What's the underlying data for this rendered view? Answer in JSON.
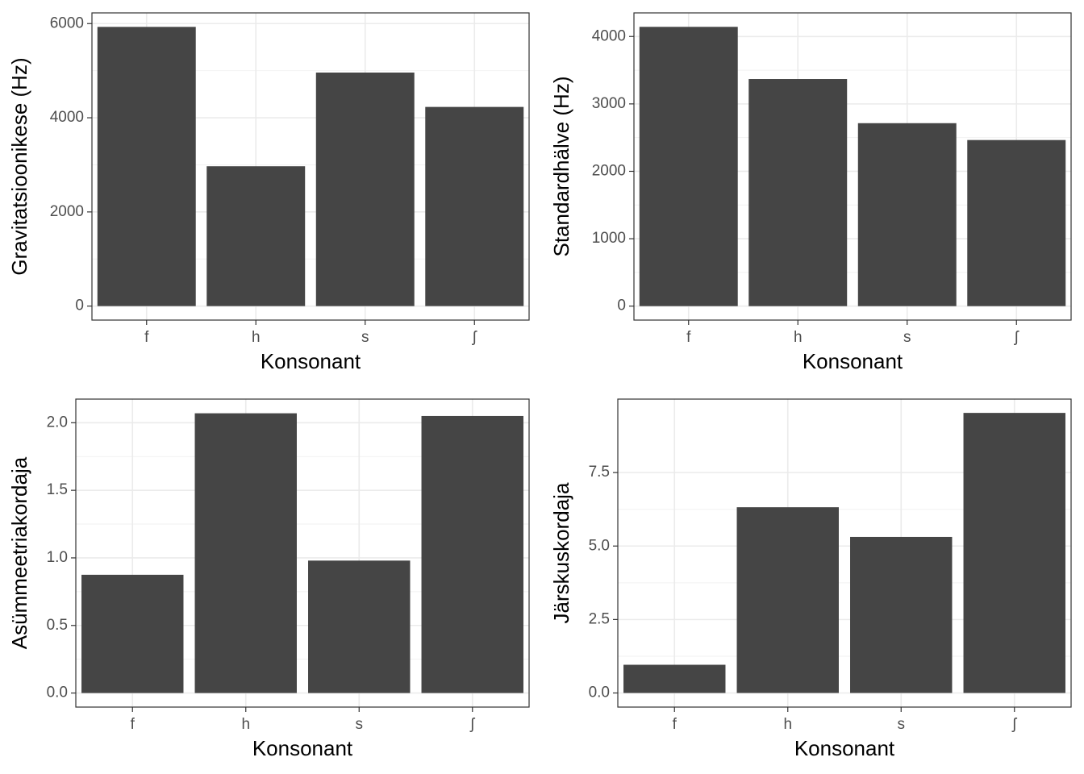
{
  "chart_data": [
    {
      "type": "bar",
      "categories": [
        "f",
        "h",
        "s",
        "ʃ"
      ],
      "values": [
        5930,
        2970,
        4960,
        4230
      ],
      "color": "#454545",
      "xlabel": "Konsonant",
      "ylabel": "Gravitatsioonikese (Hz)",
      "ylim": [
        -297,
        6227
      ],
      "yticks": [
        0,
        2000,
        4000,
        6000
      ],
      "grid": true
    },
    {
      "type": "bar",
      "categories": [
        "f",
        "h",
        "s",
        "ʃ"
      ],
      "values": [
        4143,
        3369,
        2714,
        2464
      ],
      "color": "#454545",
      "xlabel": "Konsonant",
      "ylabel": "Standardhälve (Hz)",
      "ylim": [
        -207,
        4350
      ],
      "yticks": [
        0,
        1000,
        2000,
        3000,
        4000
      ],
      "grid": true
    },
    {
      "type": "bar",
      "categories": [
        "f",
        "h",
        "s",
        "ʃ"
      ],
      "values": [
        0.875,
        2.07,
        0.98,
        2.05
      ],
      "color": "#454545",
      "xlabel": "Konsonant",
      "ylabel": "Asümmeetriakordaja",
      "ylim": [
        -0.104,
        2.175
      ],
      "yticks": [
        {
          "value": 0,
          "label": "0.0"
        },
        0.5,
        {
          "value": 1,
          "label": "1.0"
        },
        1.5,
        {
          "value": 2,
          "label": "2.0"
        }
      ],
      "grid": true
    },
    {
      "type": "bar",
      "categories": [
        "f",
        "h",
        "s",
        "ʃ"
      ],
      "values": [
        0.96,
        6.32,
        5.31,
        9.53
      ],
      "color": "#454545",
      "xlabel": "Konsonant",
      "ylabel": "Järskuskordaja",
      "ylim": [
        -0.48,
        10.0
      ],
      "yticks": [
        {
          "value": 0,
          "label": "0.0"
        },
        2.5,
        {
          "value": 5,
          "label": "5.0"
        },
        7.5
      ],
      "grid": true
    }
  ]
}
